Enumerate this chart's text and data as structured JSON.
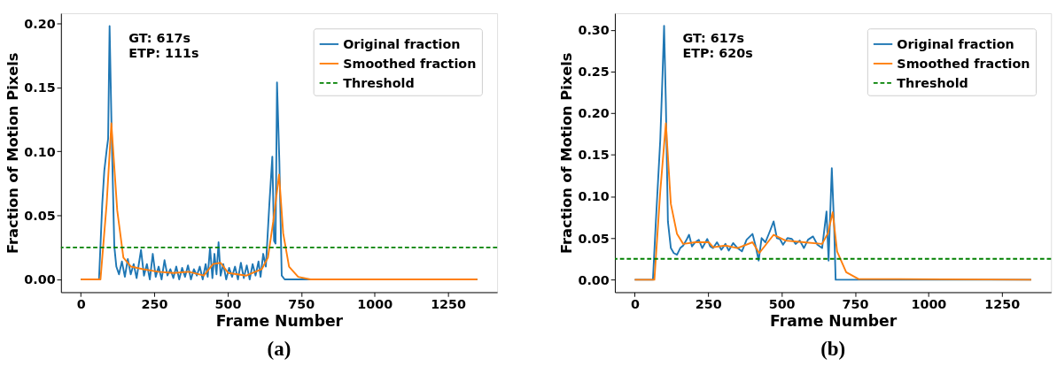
{
  "chart_data": [
    {
      "type": "line",
      "title": "(a)",
      "xlabel": "Frame Number",
      "ylabel": "Fraction of Motion Pixels",
      "annotations": [
        "GT: 617s\nETP: 111s"
      ],
      "legend": "top right",
      "grid": false,
      "xlim": [
        -67.5,
        1417.5
      ],
      "xticks": [
        0,
        250,
        500,
        750,
        1000,
        1250
      ],
      "ylim": [
        -0.01,
        0.208
      ],
      "yticks": [
        {
          "value": 0,
          "label": "0.00"
        },
        0.05,
        {
          "value": 0.1,
          "label": "0.10"
        },
        0.15,
        {
          "value": 0.2,
          "label": "0.20"
        }
      ],
      "series": [
        {
          "name": "Original fraction",
          "color": "#1f77b4",
          "x": [
            0,
            62,
            73,
            80,
            88,
            93,
            98,
            105,
            114,
            121,
            130,
            140,
            150,
            160,
            170,
            180,
            190,
            205,
            215,
            225,
            235,
            245,
            255,
            265,
            275,
            285,
            295,
            305,
            315,
            325,
            335,
            345,
            355,
            365,
            375,
            385,
            395,
            405,
            415,
            425,
            432,
            440,
            448,
            455,
            462,
            469,
            476,
            485,
            495,
            505,
            515,
            525,
            535,
            545,
            555,
            565,
            575,
            585,
            595,
            605,
            612,
            621,
            630,
            642,
            652,
            658,
            663,
            668,
            676,
            684,
            694,
            750,
            1350
          ],
          "values": [
            0,
            0,
            0.059,
            0.085,
            0.101,
            0.11,
            0.198,
            0.115,
            0.026,
            0.01,
            0.004,
            0.014,
            0.002,
            0.016,
            0.004,
            0.012,
            0.001,
            0.023,
            0.003,
            0.012,
            0.0,
            0.02,
            0.002,
            0.01,
            0.0,
            0.015,
            0.003,
            0.008,
            0.001,
            0.01,
            0.0,
            0.009,
            0.002,
            0.011,
            0.0,
            0.008,
            0.003,
            0.01,
            0.0,
            0.012,
            0.002,
            0.025,
            0.001,
            0.02,
            0.004,
            0.029,
            0.003,
            0.012,
            0.0,
            0.009,
            0.002,
            0.01,
            0.0,
            0.013,
            0.001,
            0.011,
            0.0,
            0.012,
            0.003,
            0.014,
            0.002,
            0.02,
            0.01,
            0.059,
            0.096,
            0.03,
            0.028,
            0.154,
            0.092,
            0.003,
            0,
            0,
            0
          ]
        },
        {
          "name": "Smoothed fraction",
          "color": "#ff7f0e",
          "x": [
            0,
            67,
            88,
            104,
            124,
            145,
            171,
            212,
            264,
            316,
            368,
            419,
            450,
            476,
            502,
            564,
            616,
            637,
            655,
            675,
            689,
            709,
            740,
            782,
            1350
          ],
          "values": [
            0,
            0,
            0.059,
            0.122,
            0.054,
            0.017,
            0.01,
            0.008,
            0.006,
            0.005,
            0.006,
            0.003,
            0.012,
            0.013,
            0.005,
            0.003,
            0.008,
            0.017,
            0.045,
            0.082,
            0.036,
            0.01,
            0.002,
            0,
            0
          ]
        }
      ],
      "ref_lines": [
        {
          "axis": "y",
          "value": 0.025,
          "label": "Threshold",
          "color": "#008000",
          "line_style": "dashed"
        }
      ]
    },
    {
      "type": "line",
      "title": "(b)",
      "xlabel": "Frame Number",
      "ylabel": "Fraction of Motion Pixels",
      "annotations": [
        "GT: 617s\nETP: 620s"
      ],
      "legend": "top right",
      "grid": false,
      "xlim": [
        -67.5,
        1417.5
      ],
      "xticks": [
        0,
        250,
        500,
        750,
        1000,
        1250
      ],
      "ylim": [
        -0.015,
        0.32
      ],
      "yticks": [
        {
          "value": 0,
          "label": "0.00"
        },
        0.05,
        {
          "value": 0.1,
          "label": "0.10"
        },
        0.15,
        {
          "value": 0.2,
          "label": "0.20"
        },
        0.25,
        {
          "value": 0.3,
          "label": "0.30"
        }
      ],
      "series": [
        {
          "name": "Original fraction",
          "color": "#1f77b4",
          "x": [
            0,
            62,
            72,
            87,
            95,
            100,
            106,
            113,
            123,
            133,
            144,
            155,
            165,
            175,
            185,
            195,
            206,
            218,
            230,
            247,
            257,
            267,
            280,
            295,
            309,
            320,
            335,
            350,
            365,
            381,
            401,
            412,
            422,
            432,
            445,
            460,
            473,
            484,
            494,
            505,
            520,
            535,
            548,
            562,
            576,
            590,
            607,
            622,
            638,
            653,
            660,
            671,
            679,
            684,
            720,
            1350
          ],
          "values": [
            0,
            0,
            0.07,
            0.168,
            0.249,
            0.305,
            0.213,
            0.07,
            0.038,
            0.032,
            0.03,
            0.038,
            0.041,
            0.047,
            0.054,
            0.04,
            0.045,
            0.048,
            0.038,
            0.049,
            0.04,
            0.038,
            0.045,
            0.036,
            0.043,
            0.035,
            0.044,
            0.038,
            0.034,
            0.048,
            0.055,
            0.04,
            0.023,
            0.05,
            0.045,
            0.058,
            0.07,
            0.05,
            0.049,
            0.042,
            0.05,
            0.049,
            0.043,
            0.047,
            0.038,
            0.048,
            0.052,
            0.042,
            0.038,
            0.082,
            0.023,
            0.134,
            0.063,
            0,
            0,
            0
          ]
        },
        {
          "name": "Smoothed fraction",
          "color": "#ff7f0e",
          "x": [
            0,
            67,
            87,
            106,
            123,
            144,
            165,
            206,
            252,
            267,
            309,
            350,
            401,
            424,
            473,
            514,
            576,
            638,
            658,
            674,
            689,
            720,
            761,
            1350
          ],
          "values": [
            0,
            0,
            0.106,
            0.188,
            0.091,
            0.055,
            0.043,
            0.045,
            0.045,
            0.039,
            0.041,
            0.038,
            0.045,
            0.032,
            0.054,
            0.047,
            0.045,
            0.043,
            0.056,
            0.081,
            0.034,
            0.009,
            0.001,
            0
          ]
        }
      ],
      "ref_lines": [
        {
          "axis": "y",
          "value": 0.025,
          "label": "Threshold",
          "color": "#008000",
          "line_style": "dashed"
        }
      ]
    }
  ]
}
